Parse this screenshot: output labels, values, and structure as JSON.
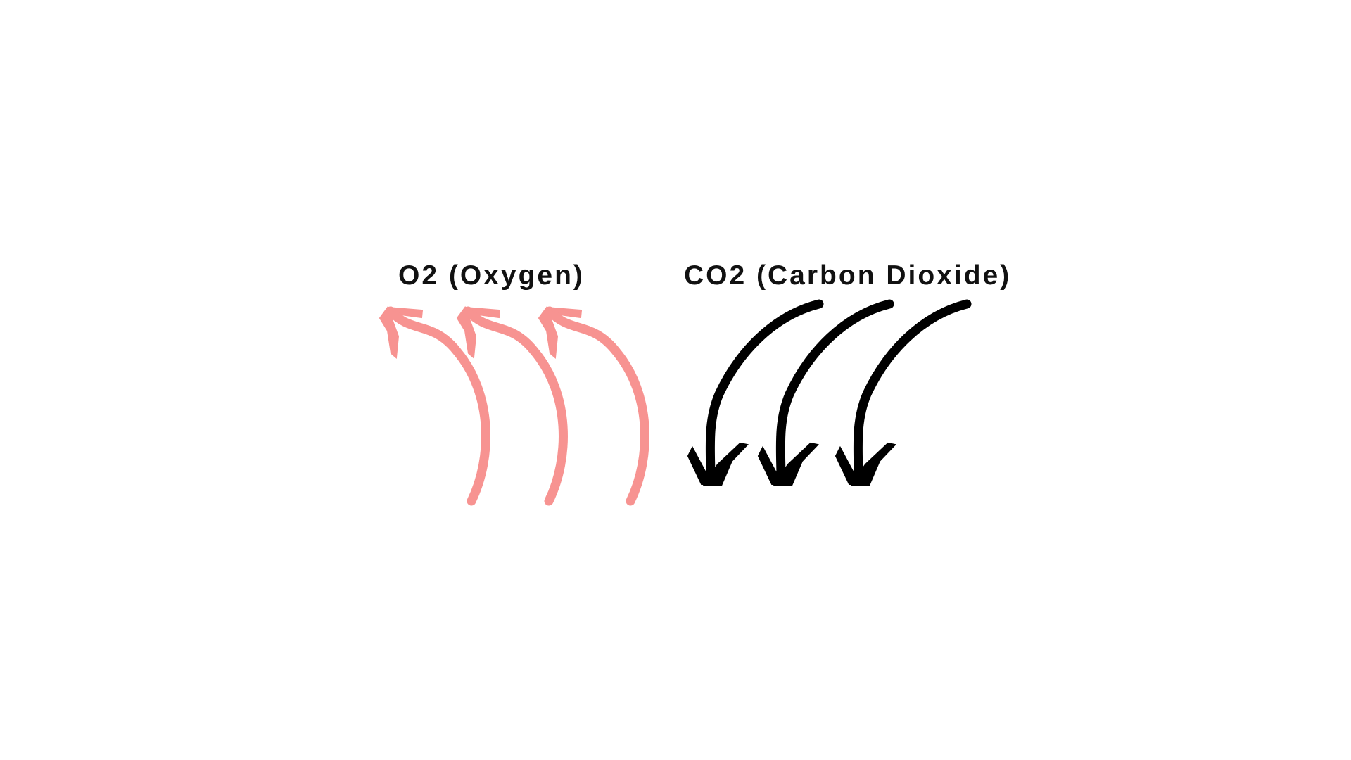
{
  "labels": {
    "oxygen": "O2 (Oxygen)",
    "carbon_dioxide": "CO2 (Carbon Dioxide)"
  },
  "groups": {
    "oxygen": {
      "direction": "up",
      "arrow_count": 3,
      "color": "#f79391"
    },
    "carbon_dioxide": {
      "direction": "down",
      "arrow_count": 3,
      "color": "#000000"
    }
  }
}
